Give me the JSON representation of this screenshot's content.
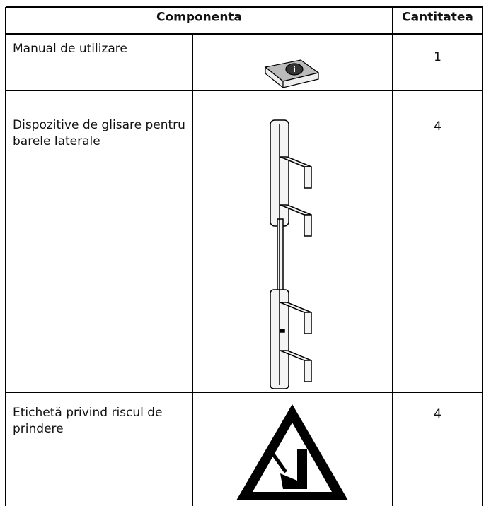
{
  "table": {
    "header": [
      "Componenta",
      "Cantitatea"
    ],
    "rows": [
      [
        "Manual de utilizare",
        1
      ],
      [
        "Dispozitive de glisare pentru barele laterale",
        4
      ],
      [
        "Etichetă privind riscul de prindere",
        4
      ]
    ]
  }
}
